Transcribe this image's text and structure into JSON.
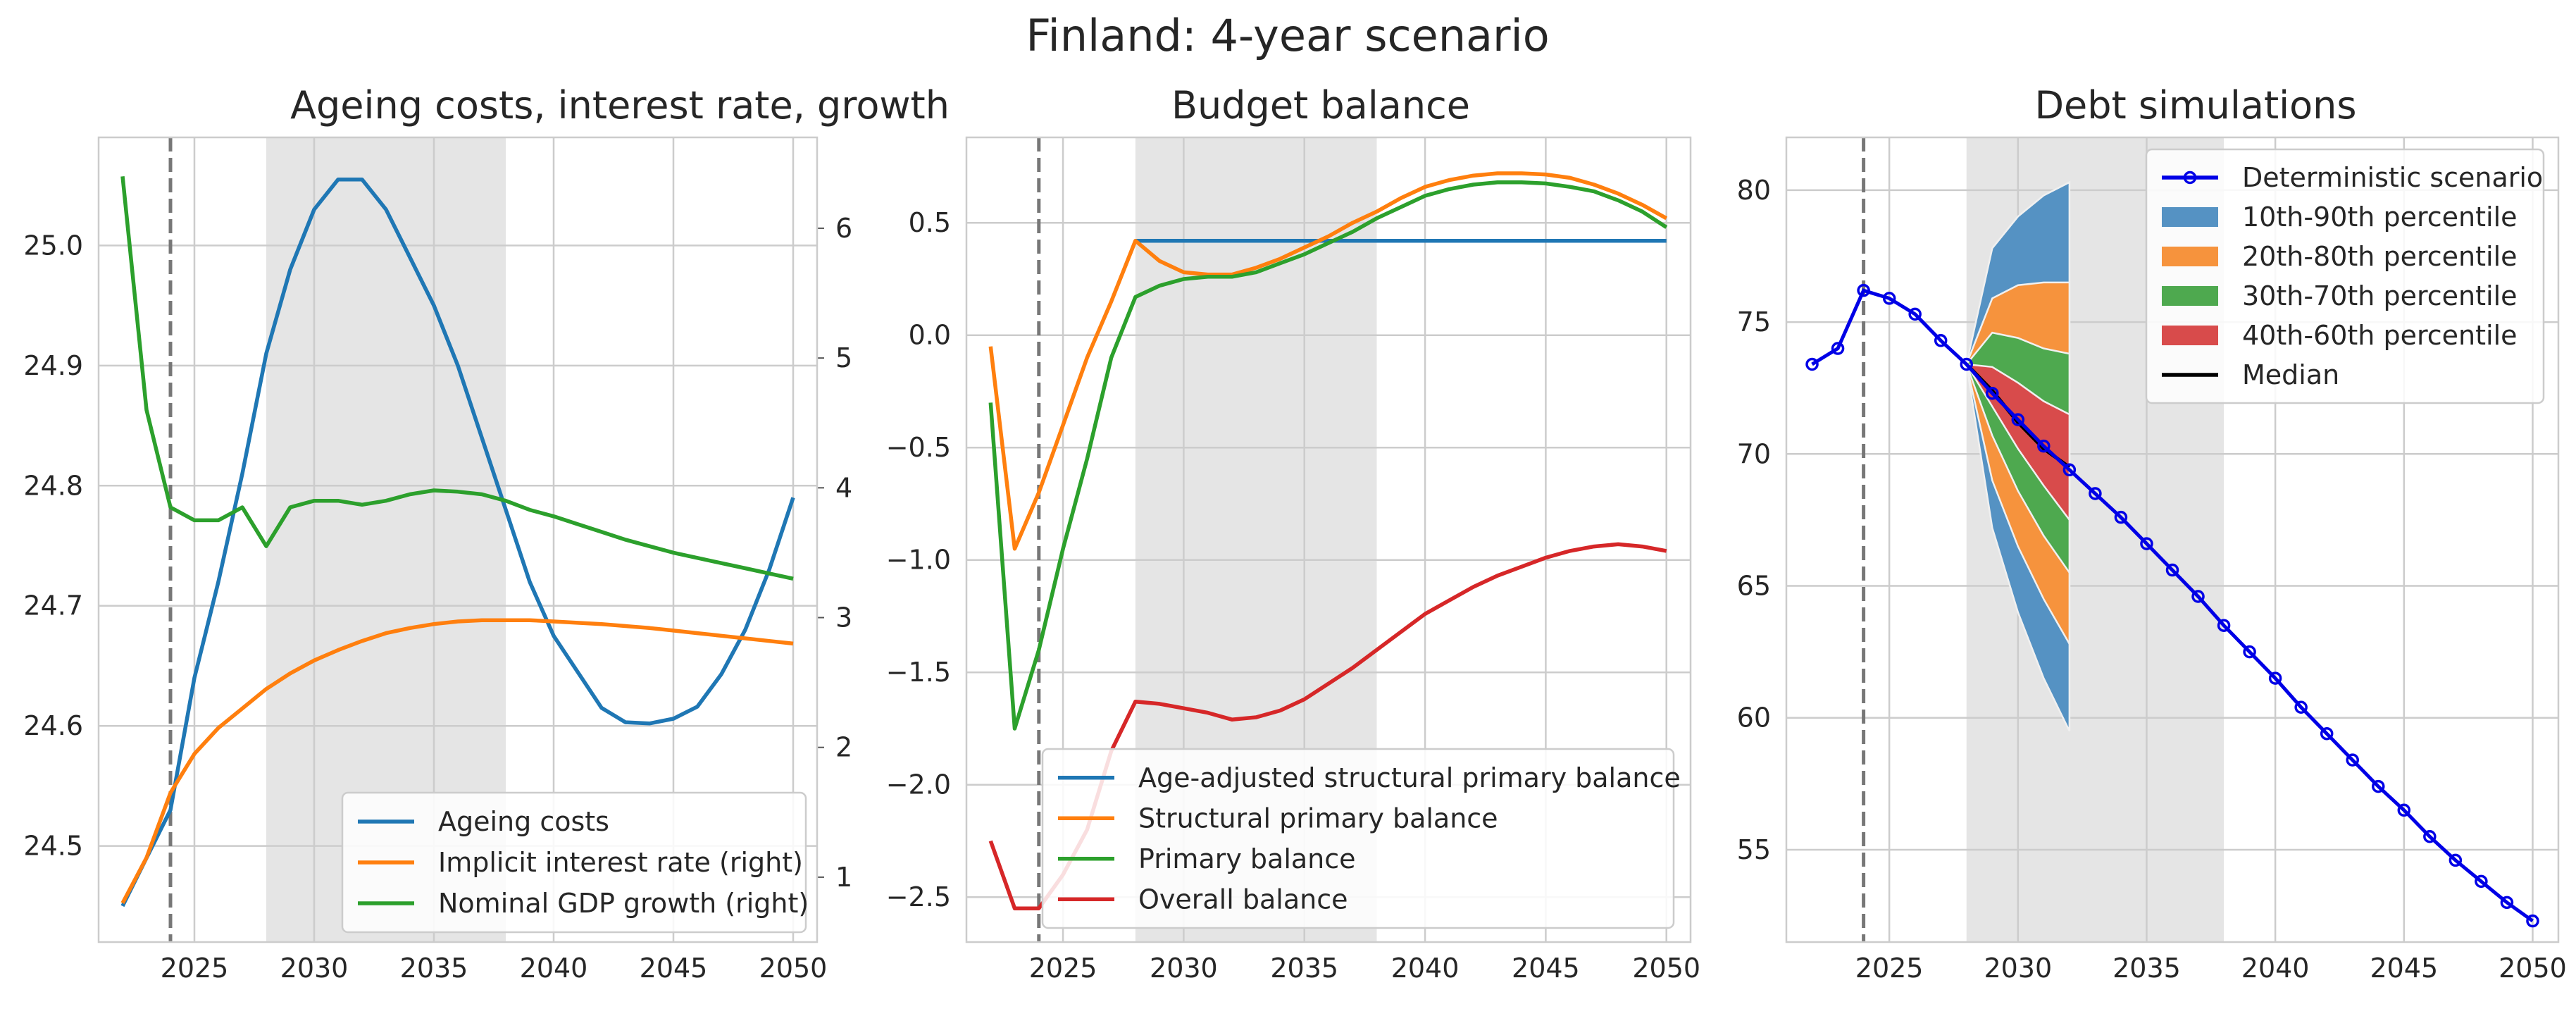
{
  "figure_title": "Finland: 4-year scenario",
  "chart_data": [
    {
      "type": "line",
      "title": "Ageing costs, interest rate, growth",
      "xlabel": "",
      "ylabel": "",
      "xlim": [
        2021,
        2051
      ],
      "ylim": [
        24.42,
        25.09
      ],
      "ylim_right": [
        0.5,
        6.7
      ],
      "x_ticks": [
        2025,
        2030,
        2035,
        2040,
        2045,
        2050
      ],
      "y_ticks": [
        24.5,
        24.6,
        24.7,
        24.8,
        24.9,
        25.0
      ],
      "y_ticks_right": [
        1,
        2,
        3,
        4,
        5,
        6
      ],
      "grid": true,
      "legend_position": "lower-right",
      "vline_x": 2024,
      "shaded_x": [
        2028,
        2038
      ],
      "x": [
        2022,
        2023,
        2024,
        2025,
        2026,
        2027,
        2028,
        2029,
        2030,
        2031,
        2032,
        2033,
        2034,
        2035,
        2036,
        2037,
        2038,
        2039,
        2040,
        2041,
        2042,
        2043,
        2044,
        2045,
        2046,
        2047,
        2048,
        2049,
        2050
      ],
      "series": [
        {
          "name": "Ageing costs",
          "axis": "left",
          "color": "#1f77b4",
          "values": [
            24.45,
            24.49,
            24.53,
            24.64,
            24.72,
            24.81,
            24.91,
            24.98,
            25.03,
            25.055,
            25.055,
            25.03,
            24.99,
            24.95,
            24.9,
            24.84,
            24.78,
            24.72,
            24.675,
            24.645,
            24.615,
            24.603,
            24.602,
            24.606,
            24.616,
            24.643,
            24.68,
            24.73,
            24.79
          ]
        },
        {
          "name": "Implicit interest rate (right)",
          "axis": "right",
          "color": "#ff7f0e",
          "values": [
            0.8,
            1.15,
            1.65,
            1.95,
            2.15,
            2.3,
            2.45,
            2.57,
            2.67,
            2.75,
            2.82,
            2.88,
            2.92,
            2.95,
            2.97,
            2.98,
            2.98,
            2.98,
            2.97,
            2.96,
            2.95,
            2.935,
            2.92,
            2.9,
            2.88,
            2.86,
            2.84,
            2.82,
            2.8
          ]
        },
        {
          "name": "Nominal GDP growth (right)",
          "axis": "right",
          "color": "#2ca02c",
          "values": [
            6.4,
            4.6,
            3.85,
            3.75,
            3.75,
            3.85,
            3.55,
            3.85,
            3.9,
            3.9,
            3.87,
            3.9,
            3.95,
            3.98,
            3.97,
            3.95,
            3.9,
            3.83,
            3.78,
            3.72,
            3.66,
            3.6,
            3.55,
            3.5,
            3.46,
            3.42,
            3.38,
            3.34,
            3.3
          ]
        }
      ]
    },
    {
      "type": "line",
      "title": "Budget balance",
      "xlabel": "",
      "ylabel": "",
      "xlim": [
        2021,
        2051
      ],
      "ylim": [
        -2.7,
        0.88
      ],
      "x_ticks": [
        2025,
        2030,
        2035,
        2040,
        2045,
        2050
      ],
      "y_ticks": [
        -2.5,
        -2.0,
        -1.5,
        -1.0,
        -0.5,
        0.0,
        0.5
      ],
      "y_tick_labels": [
        "−2.5",
        "−2.0",
        "−1.5",
        "−1.0",
        "−0.5",
        "0.0",
        "0.5"
      ],
      "grid": true,
      "legend_position": "lower-right",
      "vline_x": 2024,
      "shaded_x": [
        2028,
        2038
      ],
      "x": [
        2022,
        2023,
        2024,
        2025,
        2026,
        2027,
        2028,
        2029,
        2030,
        2031,
        2032,
        2033,
        2034,
        2035,
        2036,
        2037,
        2038,
        2039,
        2040,
        2041,
        2042,
        2043,
        2044,
        2045,
        2046,
        2047,
        2048,
        2049,
        2050
      ],
      "series": [
        {
          "name": "Age-adjusted structural primary balance",
          "color": "#1f77b4",
          "x": [
            2028,
            2050
          ],
          "values": [
            0.42,
            0.42
          ]
        },
        {
          "name": "Structural primary balance",
          "color": "#ff7f0e",
          "values": [
            -0.05,
            -0.95,
            -0.7,
            -0.4,
            -0.1,
            0.15,
            0.42,
            0.33,
            0.28,
            0.27,
            0.27,
            0.3,
            0.34,
            0.39,
            0.44,
            0.5,
            0.55,
            0.61,
            0.66,
            0.69,
            0.71,
            0.72,
            0.72,
            0.715,
            0.7,
            0.67,
            0.63,
            0.58,
            0.52
          ]
        },
        {
          "name": "Primary balance",
          "color": "#2ca02c",
          "values": [
            -0.3,
            -1.75,
            -1.4,
            -0.95,
            -0.55,
            -0.1,
            0.17,
            0.22,
            0.25,
            0.26,
            0.26,
            0.28,
            0.32,
            0.36,
            0.41,
            0.46,
            0.52,
            0.57,
            0.62,
            0.65,
            0.67,
            0.68,
            0.68,
            0.675,
            0.66,
            0.64,
            0.6,
            0.55,
            0.48
          ]
        },
        {
          "name": "Overall balance",
          "color": "#d62728",
          "values": [
            -2.25,
            -2.55,
            -2.55,
            -2.4,
            -2.2,
            -1.85,
            -1.63,
            -1.64,
            -1.66,
            -1.68,
            -1.71,
            -1.7,
            -1.67,
            -1.62,
            -1.55,
            -1.48,
            -1.4,
            -1.32,
            -1.24,
            -1.18,
            -1.12,
            -1.07,
            -1.03,
            -0.99,
            -0.96,
            -0.94,
            -0.93,
            -0.94,
            -0.96
          ]
        }
      ]
    },
    {
      "type": "area",
      "title": "Debt simulations",
      "xlabel": "",
      "ylabel": "",
      "xlim": [
        2021,
        2051
      ],
      "ylim": [
        51.5,
        82.0
      ],
      "x_ticks": [
        2025,
        2030,
        2035,
        2040,
        2045,
        2050
      ],
      "y_ticks": [
        55,
        60,
        65,
        70,
        75,
        80
      ],
      "grid": true,
      "legend_position": "upper-right",
      "vline_x": 2024,
      "shaded_x": [
        2028,
        2038
      ],
      "fan_x": [
        2028,
        2029,
        2030,
        2031,
        2032
      ],
      "fan": [
        {
          "name": "10th-90th percentile",
          "color": "#5592c3",
          "lower": [
            73.4,
            67.2,
            64.0,
            61.5,
            59.5
          ],
          "upper": [
            73.4,
            77.8,
            79.0,
            79.8,
            80.3
          ]
        },
        {
          "name": "20th-80th percentile",
          "color": "#f6933d",
          "lower": [
            73.4,
            69.0,
            66.5,
            64.5,
            62.8
          ],
          "upper": [
            73.4,
            75.9,
            76.4,
            76.5,
            76.5
          ]
        },
        {
          "name": "30th-70th percentile",
          "color": "#4ea94f",
          "lower": [
            73.4,
            70.7,
            68.6,
            66.9,
            65.5
          ],
          "upper": [
            73.4,
            74.6,
            74.4,
            74.0,
            73.8
          ]
        },
        {
          "name": "40th-60th percentile",
          "color": "#d84b4b",
          "lower": [
            73.4,
            71.8,
            70.2,
            68.8,
            67.5
          ],
          "upper": [
            73.4,
            73.3,
            72.7,
            72.0,
            71.5
          ]
        }
      ],
      "median": {
        "name": "Median",
        "color": "#000000",
        "values": [
          73.4,
          72.4,
          71.2,
          70.2,
          69.5
        ]
      },
      "deterministic": {
        "name": "Deterministic scenario",
        "color": "#0000e6",
        "x": [
          2022,
          2023,
          2024,
          2025,
          2026,
          2027,
          2028,
          2029,
          2030,
          2031,
          2032,
          2033,
          2034,
          2035,
          2036,
          2037,
          2038,
          2039,
          2040,
          2041,
          2042,
          2043,
          2044,
          2045,
          2046,
          2047,
          2048,
          2049,
          2050
        ],
        "values": [
          73.4,
          74.0,
          76.2,
          75.9,
          75.3,
          74.3,
          73.4,
          72.3,
          71.3,
          70.3,
          69.4,
          68.5,
          67.6,
          66.6,
          65.6,
          64.6,
          63.5,
          62.5,
          61.5,
          60.4,
          59.4,
          58.4,
          57.4,
          56.5,
          55.5,
          54.6,
          53.8,
          53.0,
          52.3
        ]
      }
    }
  ]
}
